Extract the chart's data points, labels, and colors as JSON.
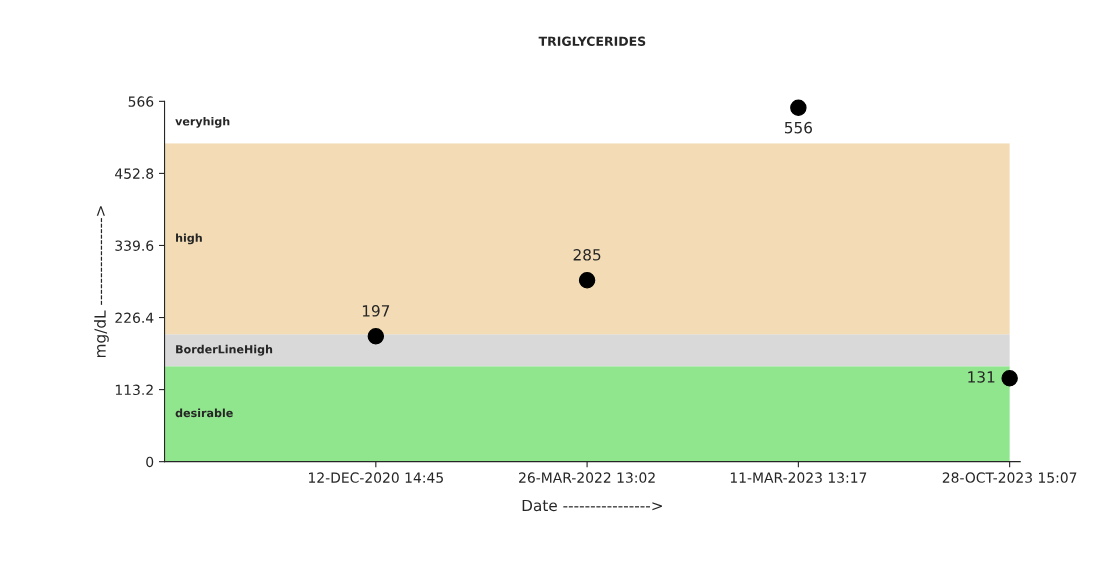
{
  "chart_data": {
    "type": "scatter",
    "title": "TRIGLYCERIDES",
    "xlabel": "Date ---------------->",
    "ylabel": "mg/dL ---------------->",
    "categories": [
      "12-DEC-2020 14:45",
      "26-MAR-2022 13:02",
      "11-MAR-2023 13:17",
      "28-OCT-2023 15:07"
    ],
    "series": [
      {
        "color": "#000000",
        "values": [
          197,
          285,
          556,
          131
        ]
      }
    ],
    "ylim": [
      0,
      566
    ],
    "yticks": [
      0,
      113.2,
      226.4,
      339.6,
      452.8,
      566
    ],
    "bands": [
      {
        "axis": "y",
        "from": 0,
        "to": 150,
        "label": "desirable",
        "color": "#90e68c"
      },
      {
        "axis": "y",
        "from": 150,
        "to": 200,
        "label": "BorderLineHigh",
        "color": "#d9d9d9"
      },
      {
        "axis": "y",
        "from": 200,
        "to": 500,
        "label": "high",
        "color": "#f3dcb5"
      },
      {
        "axis": "y",
        "from": 500,
        "to": 566,
        "label": "veryhigh",
        "color": "#ffffff"
      }
    ],
    "data_labels": true,
    "marker": "circle",
    "grid": false
  }
}
